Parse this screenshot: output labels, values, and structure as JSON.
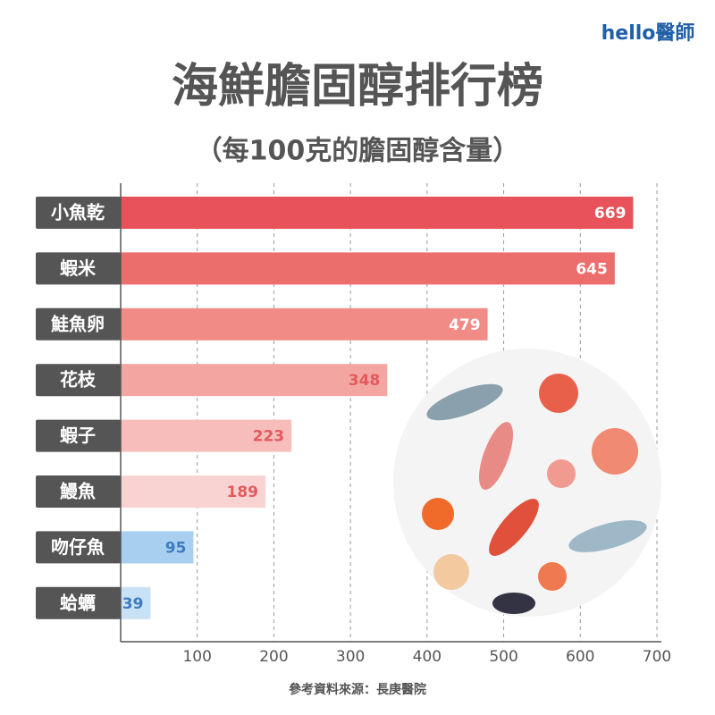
{
  "logo": "hello醫師",
  "chart_data": {
    "type": "bar",
    "orientation": "horizontal",
    "title": "海鮮膽固醇排行榜",
    "subtitle": "（每100克的膽固醇含量）",
    "source": "參考資料來源：長庚醫院",
    "categories": [
      "小魚乾",
      "蝦米",
      "鮭魚卵",
      "花枝",
      "蝦子",
      "鰻魚",
      "吻仔魚",
      "蛤蠣"
    ],
    "values": [
      669,
      645,
      479,
      348,
      223,
      189,
      95,
      39
    ],
    "colors": [
      "#e8525a",
      "#ec6e6c",
      "#f08c85",
      "#f3a6a1",
      "#f6bdbb",
      "#f9d3d2",
      "#a9cff0",
      "#c9e1f5"
    ],
    "label_colors": [
      "#ffffff",
      "#ffffff",
      "#ffffff",
      "#e25a5e",
      "#e25a5e",
      "#e25a5e",
      "#3d7cc0",
      "#3d7cc0"
    ],
    "xlim": [
      0,
      700
    ],
    "xticks": [
      100,
      200,
      300,
      400,
      500,
      600,
      700
    ],
    "grid": true
  }
}
